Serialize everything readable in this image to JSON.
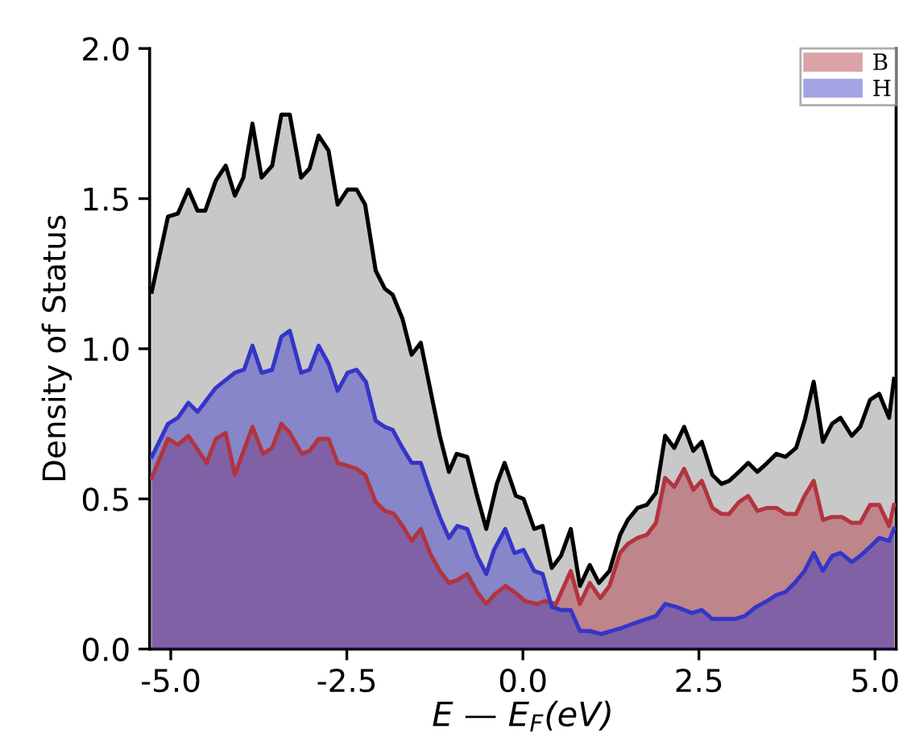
{
  "chart_data": {
    "type": "area",
    "xlabel": "E — E$_{F}$(eV)",
    "ylabel": "Density of Status",
    "xlim": [
      -5.3,
      5.3
    ],
    "ylim": [
      0,
      2.0
    ],
    "xticks": [
      {
        "value": -5.0,
        "label": "-5.0"
      },
      {
        "value": -2.5,
        "label": "-2.5"
      },
      {
        "value": 0.0,
        "label": "0.0"
      },
      {
        "value": 2.5,
        "label": "2.5"
      },
      {
        "value": 5.0,
        "label": "5.0"
      }
    ],
    "yticks": [
      {
        "value": 0.0,
        "label": "0.0"
      },
      {
        "value": 0.5,
        "label": "0.5"
      },
      {
        "value": 1.0,
        "label": "1.0"
      },
      {
        "value": 1.5,
        "label": "1.5"
      },
      {
        "value": 2.0,
        "label": "2.0"
      }
    ],
    "grid": false,
    "legend": "top right",
    "series": [
      {
        "color": "#000000",
        "x": [
          -5.27,
          -5.04,
          -4.9,
          -4.75,
          -4.62,
          -4.51,
          -4.36,
          -4.22,
          -4.09,
          -3.97,
          -3.84,
          -3.71,
          -3.56,
          -3.43,
          -3.31,
          -3.15,
          -3.03,
          -2.9,
          -2.76,
          -2.63,
          -2.49,
          -2.36,
          -2.24,
          -2.09,
          -1.96,
          -1.85,
          -1.71,
          -1.58,
          -1.45,
          -1.32,
          -1.18,
          -1.05,
          -0.94,
          -0.79,
          -0.65,
          -0.52,
          -0.37,
          -0.26,
          -0.1,
          0.01,
          0.16,
          0.28,
          0.41,
          0.54,
          0.68,
          0.81,
          0.95,
          1.08,
          1.23,
          1.38,
          1.49,
          1.63,
          1.76,
          1.89,
          2.02,
          2.15,
          2.29,
          2.42,
          2.54,
          2.69,
          2.82,
          2.93,
          3.07,
          3.2,
          3.33,
          3.47,
          3.6,
          3.73,
          3.88,
          4.0,
          4.13,
          4.26,
          4.39,
          4.51,
          4.67,
          4.79,
          4.93,
          5.06,
          5.2,
          5.27
        ],
        "values": [
          1.19,
          1.44,
          1.45,
          1.53,
          1.46,
          1.46,
          1.56,
          1.61,
          1.51,
          1.57,
          1.75,
          1.57,
          1.61,
          1.78,
          1.78,
          1.57,
          1.6,
          1.71,
          1.66,
          1.48,
          1.53,
          1.53,
          1.48,
          1.26,
          1.2,
          1.18,
          1.1,
          0.98,
          1.02,
          0.87,
          0.71,
          0.59,
          0.65,
          0.64,
          0.51,
          0.4,
          0.55,
          0.62,
          0.51,
          0.5,
          0.4,
          0.41,
          0.27,
          0.31,
          0.4,
          0.21,
          0.28,
          0.22,
          0.26,
          0.38,
          0.43,
          0.47,
          0.48,
          0.52,
          0.71,
          0.67,
          0.74,
          0.66,
          0.69,
          0.58,
          0.55,
          0.56,
          0.59,
          0.62,
          0.59,
          0.62,
          0.65,
          0.64,
          0.67,
          0.76,
          0.89,
          0.69,
          0.75,
          0.77,
          0.71,
          0.74,
          0.83,
          0.85,
          0.77,
          0.9
        ]
      },
      {
        "name": "B",
        "color": "#b2343f",
        "x": [
          -5.27,
          -5.04,
          -4.9,
          -4.75,
          -4.49,
          -4.36,
          -4.22,
          -4.09,
          -3.84,
          -3.69,
          -3.56,
          -3.43,
          -3.31,
          -3.14,
          -3.03,
          -2.9,
          -2.76,
          -2.63,
          -2.49,
          -2.36,
          -2.24,
          -2.09,
          -1.96,
          -1.83,
          -1.71,
          -1.58,
          -1.45,
          -1.32,
          -1.18,
          -1.05,
          -0.93,
          -0.79,
          -0.65,
          -0.52,
          -0.41,
          -0.25,
          -0.12,
          0.03,
          0.2,
          0.31,
          0.47,
          0.68,
          0.81,
          0.95,
          1.1,
          1.23,
          1.38,
          1.49,
          1.63,
          1.76,
          1.89,
          2.02,
          2.15,
          2.29,
          2.42,
          2.54,
          2.69,
          2.82,
          2.93,
          3.07,
          3.2,
          3.33,
          3.47,
          3.6,
          3.73,
          3.88,
          4.0,
          4.13,
          4.26,
          4.39,
          4.53,
          4.67,
          4.79,
          4.93,
          5.06,
          5.2,
          5.27
        ],
        "values": [
          0.57,
          0.7,
          0.68,
          0.71,
          0.62,
          0.7,
          0.72,
          0.58,
          0.74,
          0.65,
          0.67,
          0.75,
          0.72,
          0.65,
          0.66,
          0.7,
          0.7,
          0.62,
          0.61,
          0.6,
          0.58,
          0.49,
          0.46,
          0.45,
          0.41,
          0.36,
          0.4,
          0.32,
          0.26,
          0.22,
          0.23,
          0.25,
          0.19,
          0.15,
          0.18,
          0.21,
          0.19,
          0.16,
          0.15,
          0.16,
          0.15,
          0.26,
          0.15,
          0.22,
          0.17,
          0.21,
          0.32,
          0.35,
          0.37,
          0.38,
          0.42,
          0.57,
          0.54,
          0.6,
          0.53,
          0.56,
          0.47,
          0.45,
          0.45,
          0.49,
          0.51,
          0.46,
          0.47,
          0.47,
          0.45,
          0.45,
          0.51,
          0.56,
          0.43,
          0.44,
          0.44,
          0.42,
          0.42,
          0.48,
          0.48,
          0.41,
          0.48
        ]
      },
      {
        "name": "H",
        "color": "#3535c8",
        "x": [
          -5.27,
          -5.04,
          -4.9,
          -4.75,
          -4.62,
          -4.36,
          -4.09,
          -3.96,
          -3.84,
          -3.71,
          -3.56,
          -3.43,
          -3.31,
          -3.15,
          -3.03,
          -2.9,
          -2.76,
          -2.63,
          -2.49,
          -2.36,
          -2.23,
          -2.09,
          -1.96,
          -1.85,
          -1.71,
          -1.58,
          -1.45,
          -1.32,
          -1.18,
          -1.05,
          -0.93,
          -0.79,
          -0.65,
          -0.52,
          -0.41,
          -0.25,
          -0.12,
          0.01,
          0.16,
          0.28,
          0.41,
          0.54,
          0.68,
          0.81,
          0.95,
          1.11,
          1.26,
          1.4,
          1.63,
          1.76,
          1.89,
          2.02,
          2.18,
          2.4,
          2.54,
          2.69,
          2.82,
          3.01,
          3.15,
          3.31,
          3.47,
          3.6,
          3.73,
          3.86,
          4.0,
          4.13,
          4.26,
          4.39,
          4.51,
          4.67,
          4.79,
          4.93,
          5.06,
          5.2,
          5.27
        ],
        "values": [
          0.64,
          0.75,
          0.77,
          0.82,
          0.79,
          0.87,
          0.92,
          0.93,
          1.01,
          0.92,
          0.93,
          1.04,
          1.06,
          0.92,
          0.93,
          1.01,
          0.95,
          0.86,
          0.92,
          0.93,
          0.89,
          0.76,
          0.74,
          0.73,
          0.67,
          0.62,
          0.62,
          0.53,
          0.44,
          0.37,
          0.41,
          0.4,
          0.31,
          0.25,
          0.33,
          0.4,
          0.32,
          0.33,
          0.26,
          0.25,
          0.14,
          0.13,
          0.13,
          0.06,
          0.06,
          0.05,
          0.06,
          0.07,
          0.09,
          0.1,
          0.11,
          0.15,
          0.14,
          0.12,
          0.13,
          0.1,
          0.1,
          0.1,
          0.11,
          0.14,
          0.16,
          0.18,
          0.19,
          0.22,
          0.26,
          0.32,
          0.26,
          0.31,
          0.32,
          0.29,
          0.31,
          0.34,
          0.37,
          0.36,
          0.4
        ]
      }
    ]
  }
}
